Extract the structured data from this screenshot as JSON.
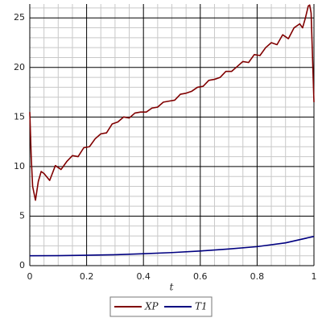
{
  "chart_data": {
    "type": "line",
    "xlabel": "t",
    "xlim": [
      0,
      1
    ],
    "ylim": [
      0,
      26.4
    ],
    "xticks": [
      0,
      0.2,
      0.4,
      0.6,
      0.8,
      1
    ],
    "yticks": [
      0,
      5,
      10,
      15,
      20,
      25
    ],
    "grid": true,
    "legend": "bottom",
    "series": [
      {
        "name": "XP",
        "color": "#800000",
        "x": [
          0,
          0.005,
          0.01,
          0.02,
          0.03,
          0.04,
          0.05,
          0.07,
          0.09,
          0.11,
          0.13,
          0.15,
          0.17,
          0.19,
          0.21,
          0.23,
          0.25,
          0.27,
          0.29,
          0.31,
          0.33,
          0.35,
          0.37,
          0.39,
          0.41,
          0.43,
          0.45,
          0.47,
          0.49,
          0.51,
          0.53,
          0.55,
          0.57,
          0.59,
          0.61,
          0.63,
          0.65,
          0.67,
          0.69,
          0.71,
          0.73,
          0.75,
          0.77,
          0.79,
          0.81,
          0.83,
          0.85,
          0.87,
          0.89,
          0.91,
          0.93,
          0.95,
          0.96,
          0.97,
          0.98,
          0.985,
          0.99,
          0.995,
          1
        ],
        "values": [
          15.5,
          11,
          8,
          6.6,
          8.5,
          9.5,
          9.3,
          8.6,
          10.1,
          9.7,
          10.5,
          11.1,
          11.0,
          11.9,
          12.0,
          12.8,
          13.3,
          13.4,
          14.3,
          14.5,
          15.0,
          14.9,
          15.4,
          15.5,
          15.5,
          15.9,
          16.0,
          16.5,
          16.6,
          16.7,
          17.3,
          17.4,
          17.6,
          18.0,
          18.1,
          18.7,
          18.8,
          19.0,
          19.6,
          19.6,
          20.1,
          20.6,
          20.5,
          21.3,
          21.2,
          22.0,
          22.5,
          22.3,
          23.3,
          22.9,
          24.0,
          24.4,
          24.0,
          25.0,
          26.2,
          26.3,
          25.5,
          21,
          16.5
        ]
      },
      {
        "name": "T1",
        "color": "#000080",
        "x": [
          0,
          0.1,
          0.2,
          0.3,
          0.4,
          0.5,
          0.6,
          0.7,
          0.8,
          0.9,
          1
        ],
        "values": [
          1.0,
          1.01,
          1.05,
          1.1,
          1.2,
          1.32,
          1.48,
          1.68,
          1.92,
          2.3,
          2.95
        ]
      }
    ]
  }
}
